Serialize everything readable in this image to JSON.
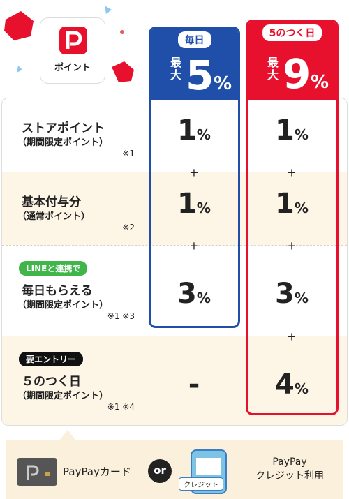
{
  "logo": {
    "label": "ポイント"
  },
  "columns": [
    {
      "label": "毎日",
      "max_label": "最大",
      "value": "5",
      "unit": "%"
    },
    {
      "label": "5のつく日",
      "max_label": "最大",
      "value": "9",
      "unit": "%"
    }
  ],
  "separator": "+",
  "rows": [
    {
      "title": "ストアポイント",
      "subtitle": "（期間限定ポイント）",
      "note": "※1",
      "cells": [
        {
          "value": "1",
          "unit": "%"
        },
        {
          "value": "1",
          "unit": "%"
        }
      ]
    },
    {
      "title": "基本付与分",
      "subtitle": "（通常ポイント）",
      "note": "※2",
      "cells": [
        {
          "value": "1",
          "unit": "%"
        },
        {
          "value": "1",
          "unit": "%"
        }
      ]
    },
    {
      "badge": "LINEと連携で",
      "title": "毎日もらえる",
      "subtitle": "（期間限定ポイント）",
      "note": "※1 ※3",
      "cells": [
        {
          "value": "3",
          "unit": "%"
        },
        {
          "value": "3",
          "unit": "%"
        }
      ]
    },
    {
      "badge": "要エントリー",
      "title": "５のつく日",
      "subtitle": "（期間限定ポイント）",
      "note": "※1 ※4",
      "cells": [
        {
          "value": "-"
        },
        {
          "value": "4",
          "unit": "%"
        }
      ]
    }
  ],
  "footer": {
    "card_label": "PayPayカード",
    "or": "or",
    "phone_label": "クレジット",
    "credit_lines": [
      "PayPay",
      "クレジット利用"
    ]
  }
}
